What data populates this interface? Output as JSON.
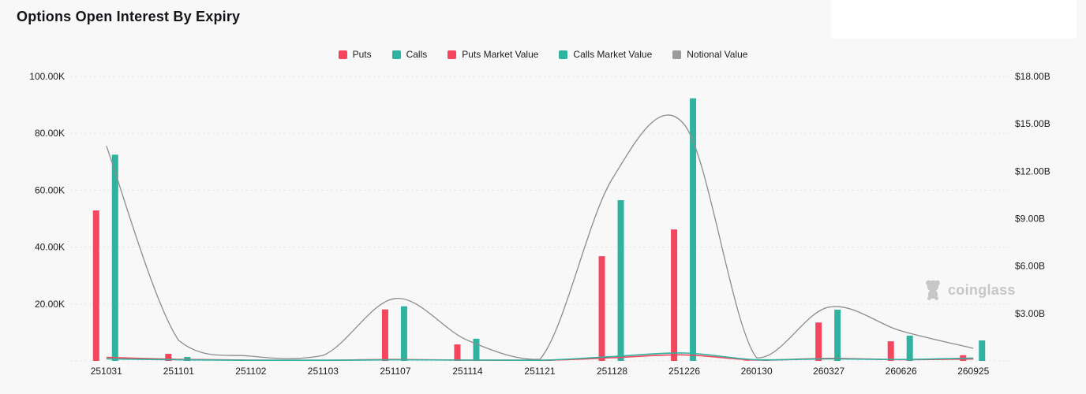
{
  "page": {
    "title": "Options Open Interest By Expiry",
    "background": "#f8f8f9"
  },
  "watermark": {
    "text": "coinglass",
    "icon": "coinglass-bear-logo",
    "color": "#c7c7ca"
  },
  "legend": [
    {
      "label": "Puts",
      "color": "#f4465d"
    },
    {
      "label": "Calls",
      "color": "#2fb3a0"
    },
    {
      "label": "Puts Market Value",
      "color": "#f4465d"
    },
    {
      "label": "Calls Market Value",
      "color": "#2fb3a0"
    },
    {
      "label": "Notional Value",
      "color": "#9b9b9b"
    }
  ],
  "chart_data": {
    "type": "mixed-bar-line",
    "title": "Options Open Interest By Expiry",
    "grid": "dashed-horizontal",
    "categories": [
      "251031",
      "251101",
      "251102",
      "251103",
      "251107",
      "251114",
      "251121",
      "251128",
      "251226",
      "260130",
      "260327",
      "260626",
      "260925"
    ],
    "series": [
      {
        "name": "Puts",
        "type": "bar",
        "axis": "left",
        "color": "#f4465d",
        "values": [
          52.9,
          2.5,
          0.15,
          0.1,
          18.1,
          5.8,
          0.1,
          36.8,
          46.2,
          0.15,
          13.5,
          6.9,
          2.0
        ]
      },
      {
        "name": "Calls",
        "type": "bar",
        "axis": "left",
        "color": "#2fb3a0",
        "values": [
          72.5,
          1.4,
          0.2,
          0.15,
          19.2,
          7.8,
          0.15,
          56.5,
          92.3,
          0.2,
          18.0,
          8.9,
          7.2
        ]
      },
      {
        "name": "Puts Market Value",
        "type": "line",
        "axis": "right",
        "color": "#f4465d",
        "values": [
          0.22,
          0.1,
          0.05,
          0.04,
          0.09,
          0.05,
          0.03,
          0.2,
          0.38,
          0.05,
          0.16,
          0.08,
          0.12
        ]
      },
      {
        "name": "Calls Market Value",
        "type": "line",
        "axis": "right",
        "color": "#2fb3a0",
        "values": [
          0.13,
          0.07,
          0.04,
          0.03,
          0.07,
          0.05,
          0.04,
          0.27,
          0.5,
          0.07,
          0.13,
          0.09,
          0.18
        ]
      },
      {
        "name": "Notional Value",
        "type": "line",
        "axis": "right",
        "color": "#8c8c8c",
        "values": [
          13.6,
          1.3,
          0.3,
          0.35,
          3.95,
          1.3,
          0.1,
          11.5,
          14.95,
          0.2,
          3.4,
          1.9,
          0.8
        ]
      }
    ],
    "left_axis": {
      "unit": "K",
      "min": 0,
      "max": 100,
      "tick_step": 20,
      "ticks": [
        "20.00K",
        "40.00K",
        "60.00K",
        "80.00K",
        "100.00K"
      ]
    },
    "right_axis": {
      "unit": "B",
      "min": 0,
      "max": 18,
      "tick_step": 3,
      "ticks": [
        "$3.00B",
        "$6.00B",
        "$9.00B",
        "$12.00B",
        "$15.00B",
        "$18.00B"
      ]
    },
    "legend_position": "top-center"
  }
}
